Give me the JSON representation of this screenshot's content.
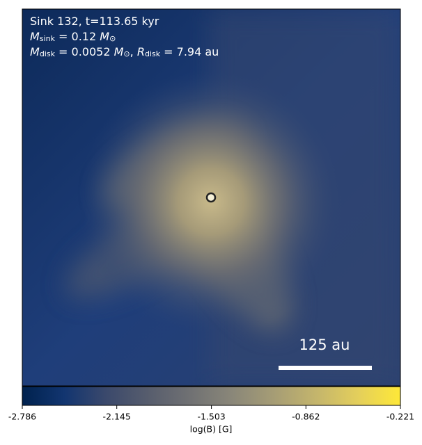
{
  "chart_data": {
    "type": "image",
    "annotations": [
      [
        {
          "t": "Sink 132, t=113.65 kyr"
        }
      ],
      [
        {
          "t": "M",
          "italic": true
        },
        {
          "t": "sink",
          "sub": true
        },
        {
          "t": " = 0.12 "
        },
        {
          "t": "M",
          "italic": true
        },
        {
          "t": "⊙",
          "sub": true
        }
      ],
      [
        {
          "t": "M",
          "italic": true
        },
        {
          "t": "disk",
          "sub": true
        },
        {
          "t": " = 0.0052 "
        },
        {
          "t": "M",
          "italic": true
        },
        {
          "t": "⊙",
          "sub": true
        },
        {
          "t": ", "
        },
        {
          "t": "R",
          "italic": true
        },
        {
          "t": "disk",
          "sub": true
        },
        {
          "t": " = 7.94 au"
        }
      ]
    ],
    "scalebar_label": "125 au",
    "colorbar": {
      "label": "log(B) [G]",
      "lim": [
        -2.786,
        -0.221
      ],
      "ticks": [
        -2.786,
        -2.145,
        -1.503,
        -0.862,
        -0.221
      ],
      "colors": [
        "#00224e",
        "#123570",
        "#3b496c",
        "#575d6d",
        "#707173",
        "#8a8779",
        "#a69d75",
        "#c4b56c",
        "#e4cf5b",
        "#fee838"
      ]
    }
  }
}
